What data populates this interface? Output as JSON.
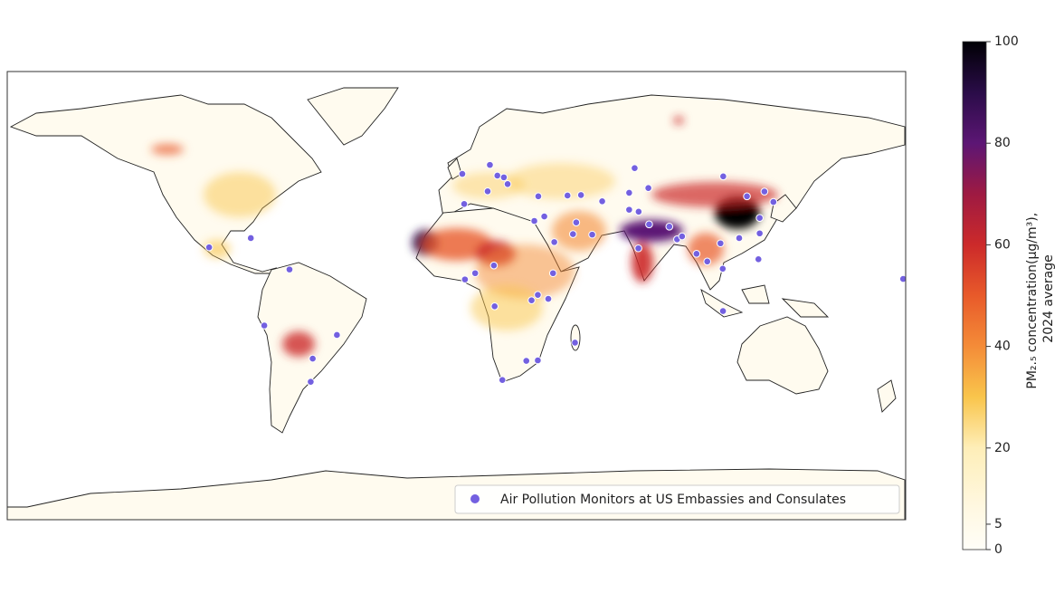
{
  "chart_data": {
    "type": "map",
    "xlim": [
      -180,
      180
    ],
    "ylim": [
      -90,
      90
    ],
    "legend": "lower right",
    "series": [
      {
        "name": "Air Pollution Monitors at US Embassies and Consulates",
        "color": "#7360e0",
        "lon": [
          -99.1,
          -82.4,
          -66.9,
          -77,
          -57.6,
          -47.9,
          -58.4,
          2.35,
          13.4,
          3.1,
          12.5,
          16.4,
          19,
          20.5,
          32.8,
          44.5,
          49.9,
          58.4,
          71.4,
          69.2,
          76.9,
          69.2,
          73,
          77.2,
          72.9,
          85.3,
          88.4,
          90.4,
          96.2,
          100.5,
          105.8,
          106.7,
          113.3,
          116.4,
          123.4,
          127,
          121.5,
          121.5,
          121,
          106.8,
          106.9,
          179,
          31.2,
          35.2,
          48,
          46.7,
          54.4,
          39.2,
          38.7,
          32.6,
          36.8,
          30.1,
          15,
          7.5,
          3.4,
          15.3,
          47.5,
          28,
          32.6,
          18.4
        ],
        "lat": [
          19.4,
          23.1,
          10.5,
          -12,
          -25.3,
          -15.8,
          -34.6,
          48.9,
          52.5,
          36.8,
          41.9,
          48.2,
          47.5,
          44.8,
          39.9,
          40.2,
          40.4,
          37.9,
          51.2,
          41.3,
          43.2,
          34.5,
          33.7,
          28.6,
          19,
          27.7,
          22.6,
          23.8,
          16.8,
          13.7,
          21,
          10.8,
          23.1,
          39.9,
          41.8,
          37.6,
          31.2,
          25,
          14.6,
          -6.2,
          47.9,
          6.7,
          30,
          31.8,
          29.4,
          24.7,
          24.5,
          21.5,
          9,
          0.3,
          -1.3,
          -1.9,
          12.1,
          9,
          6.5,
          -4.3,
          -18.9,
          -26.2,
          -26,
          -33.9
        ]
      }
    ],
    "colorbar": {
      "label": [
        "PM₂.₅ concentration(µg/m³),",
        "2024 average"
      ],
      "lim": [
        0,
        100
      ],
      "ticks": [
        0,
        5,
        20,
        40,
        60,
        80,
        100
      ]
    }
  }
}
